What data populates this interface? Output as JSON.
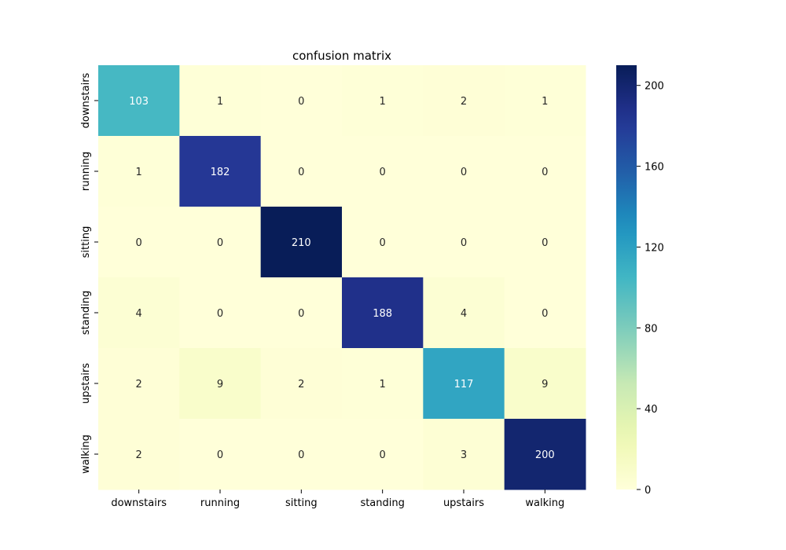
{
  "chart_data": {
    "type": "heatmap",
    "title": "confusion matrix",
    "xlabel": "",
    "ylabel": "",
    "x_categories": [
      "downstairs",
      "running",
      "sitting",
      "standing",
      "upstairs",
      "walking"
    ],
    "y_categories": [
      "downstairs",
      "running",
      "sitting",
      "standing",
      "upstairs",
      "walking"
    ],
    "values": [
      [
        103,
        1,
        0,
        1,
        2,
        1
      ],
      [
        1,
        182,
        0,
        0,
        0,
        0
      ],
      [
        0,
        0,
        210,
        0,
        0,
        0
      ],
      [
        4,
        0,
        0,
        188,
        4,
        0
      ],
      [
        2,
        9,
        2,
        1,
        117,
        9
      ],
      [
        2,
        0,
        0,
        0,
        3,
        200
      ]
    ],
    "colormap": "YlGnBu",
    "value_range": [
      0,
      210
    ],
    "colorbar_ticks": [
      0,
      40,
      80,
      120,
      160,
      200
    ],
    "colorbar_tick_labels": [
      "0",
      "40",
      "80",
      "120",
      "160",
      "200"
    ],
    "grid": false,
    "legend": "colorbar-right"
  }
}
